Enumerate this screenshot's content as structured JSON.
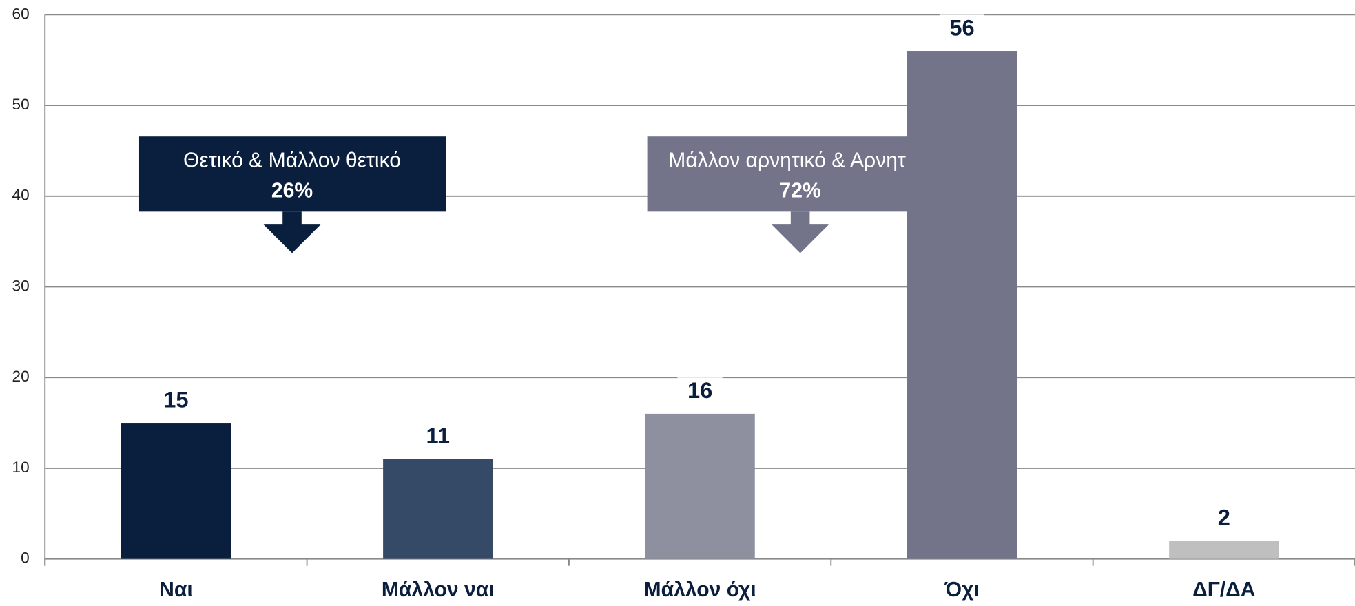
{
  "chart_data": {
    "type": "bar",
    "categories": [
      "Ναι",
      "Μάλλον ναι",
      "Μάλλον όχι",
      "Όχι",
      "ΔΓ/ΔΑ"
    ],
    "values": [
      15,
      11,
      16,
      56,
      2
    ],
    "colors": [
      "#0a1f3d",
      "#344a66",
      "#8e909f",
      "#737489",
      "#bfbfbf"
    ],
    "ylim": [
      0,
      60
    ],
    "yticks": [
      0,
      10,
      20,
      30,
      40,
      50,
      60
    ],
    "grid": true,
    "annotations": [
      {
        "text": "Θετικό & Μάλλον θετικό",
        "label": "26%",
        "color": "#0a1f3d"
      },
      {
        "text": "Μάλλον αρνητικό & Αρνητικό",
        "label": "72%",
        "color": "#737489"
      }
    ]
  }
}
